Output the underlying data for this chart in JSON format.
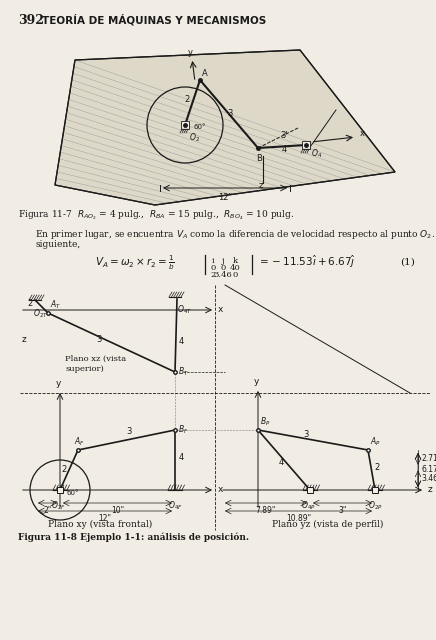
{
  "page_number": "392",
  "page_title": "TEORÍA DE MÁQUINAS Y MECANISMOS",
  "bg_color": "#f2ede4",
  "text_color": "#1a1a1a",
  "fig7_caption": "Figura 11-7  $R_{AO_2}$ = 4 pulg.,  $R_{BA}$ = 15 pulg.,  $R_{BO_4}$ = 10 pulg.",
  "para_line1": "En primer lugar, se encuentra $V_A$ como la diferencia de velocidad respecto al punto $O_2$. Por con-",
  "para_line2": "siguiente,",
  "eq_number": "(1)",
  "fig8_caption": "Figura 11-8 Ejemplo 1-1: análisis de posición."
}
